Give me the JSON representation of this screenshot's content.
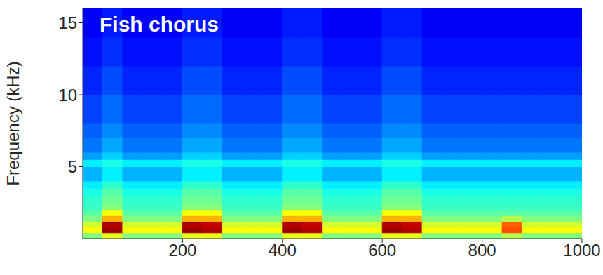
{
  "chart_data": {
    "type": "heatmap",
    "title": "Fish chorus",
    "ylabel": "Frequency (kHz)",
    "xlim": [
      0,
      1000
    ],
    "xticks": [
      200,
      400,
      600,
      800,
      1000
    ],
    "ylim": [
      0,
      16
    ],
    "yticks": [
      5,
      10,
      15
    ],
    "x_edges": [
      0,
      40,
      80,
      120,
      160,
      200,
      240,
      280,
      320,
      360,
      400,
      440,
      480,
      520,
      560,
      600,
      640,
      680,
      720,
      760,
      800,
      840,
      880,
      920,
      960,
      1000
    ],
    "y_edges": [
      0,
      0.4,
      0.8,
      1.2,
      1.6,
      2,
      2.5,
      3,
      3.5,
      4,
      5,
      5.5,
      6,
      7,
      8,
      10,
      12,
      14,
      16
    ],
    "cells": [
      [
        0.5,
        0.6,
        0.5,
        0.5,
        0.5,
        0.6,
        0.6,
        0.5,
        0.5,
        0.5,
        0.6,
        0.6,
        0.5,
        0.5,
        0.5,
        0.6,
        0.6,
        0.5,
        0.5,
        0.5,
        0.5,
        0.55,
        0.5,
        0.5,
        0.5
      ],
      [
        0.62,
        0.97,
        0.62,
        0.62,
        0.62,
        0.97,
        0.95,
        0.62,
        0.62,
        0.62,
        0.97,
        0.95,
        0.62,
        0.62,
        0.62,
        0.97,
        0.95,
        0.62,
        0.62,
        0.62,
        0.62,
        0.8,
        0.62,
        0.62,
        0.62
      ],
      [
        0.58,
        0.95,
        0.58,
        0.58,
        0.58,
        0.95,
        0.93,
        0.58,
        0.58,
        0.58,
        0.95,
        0.93,
        0.58,
        0.58,
        0.58,
        0.95,
        0.93,
        0.58,
        0.58,
        0.58,
        0.58,
        0.78,
        0.58,
        0.58,
        0.58
      ],
      [
        0.5,
        0.7,
        0.5,
        0.5,
        0.5,
        0.7,
        0.7,
        0.5,
        0.5,
        0.5,
        0.7,
        0.7,
        0.5,
        0.5,
        0.5,
        0.7,
        0.7,
        0.5,
        0.5,
        0.5,
        0.5,
        0.55,
        0.5,
        0.5,
        0.5
      ],
      [
        0.46,
        0.62,
        0.46,
        0.46,
        0.46,
        0.62,
        0.62,
        0.46,
        0.46,
        0.46,
        0.62,
        0.62,
        0.46,
        0.46,
        0.46,
        0.62,
        0.62,
        0.46,
        0.46,
        0.46,
        0.46,
        0.46,
        0.46,
        0.46,
        0.46
      ],
      [
        0.43,
        0.5,
        0.43,
        0.43,
        0.43,
        0.5,
        0.5,
        0.43,
        0.43,
        0.43,
        0.5,
        0.5,
        0.43,
        0.43,
        0.43,
        0.5,
        0.5,
        0.43,
        0.43,
        0.43,
        0.43,
        0.43,
        0.43,
        0.43,
        0.43
      ],
      [
        0.42,
        0.48,
        0.42,
        0.42,
        0.42,
        0.48,
        0.48,
        0.42,
        0.42,
        0.42,
        0.48,
        0.48,
        0.42,
        0.42,
        0.42,
        0.48,
        0.48,
        0.42,
        0.42,
        0.42,
        0.42,
        0.42,
        0.42,
        0.42,
        0.42
      ],
      [
        0.4,
        0.46,
        0.4,
        0.4,
        0.4,
        0.46,
        0.46,
        0.4,
        0.4,
        0.4,
        0.46,
        0.46,
        0.4,
        0.4,
        0.4,
        0.46,
        0.46,
        0.4,
        0.4,
        0.4,
        0.4,
        0.4,
        0.4,
        0.4,
        0.4
      ],
      [
        0.36,
        0.42,
        0.36,
        0.36,
        0.36,
        0.42,
        0.42,
        0.36,
        0.36,
        0.36,
        0.42,
        0.42,
        0.36,
        0.36,
        0.36,
        0.42,
        0.42,
        0.36,
        0.36,
        0.36,
        0.36,
        0.36,
        0.36,
        0.36,
        0.36
      ],
      [
        0.3,
        0.36,
        0.3,
        0.3,
        0.3,
        0.36,
        0.36,
        0.3,
        0.3,
        0.3,
        0.36,
        0.36,
        0.3,
        0.3,
        0.3,
        0.36,
        0.36,
        0.3,
        0.3,
        0.3,
        0.3,
        0.3,
        0.3,
        0.3,
        0.3
      ],
      [
        0.36,
        0.4,
        0.36,
        0.36,
        0.36,
        0.4,
        0.4,
        0.36,
        0.36,
        0.36,
        0.4,
        0.4,
        0.36,
        0.36,
        0.36,
        0.4,
        0.4,
        0.36,
        0.36,
        0.36,
        0.36,
        0.36,
        0.36,
        0.36,
        0.36
      ],
      [
        0.28,
        0.33,
        0.28,
        0.28,
        0.28,
        0.33,
        0.33,
        0.28,
        0.28,
        0.28,
        0.33,
        0.33,
        0.28,
        0.28,
        0.28,
        0.33,
        0.33,
        0.28,
        0.28,
        0.28,
        0.28,
        0.28,
        0.28,
        0.28,
        0.28
      ],
      [
        0.24,
        0.29,
        0.24,
        0.24,
        0.24,
        0.29,
        0.29,
        0.24,
        0.24,
        0.24,
        0.29,
        0.29,
        0.24,
        0.24,
        0.24,
        0.29,
        0.29,
        0.24,
        0.24,
        0.24,
        0.24,
        0.24,
        0.24,
        0.24,
        0.24
      ],
      [
        0.22,
        0.26,
        0.22,
        0.22,
        0.22,
        0.26,
        0.26,
        0.22,
        0.22,
        0.22,
        0.26,
        0.26,
        0.22,
        0.22,
        0.22,
        0.26,
        0.26,
        0.22,
        0.22,
        0.22,
        0.22,
        0.22,
        0.22,
        0.22,
        0.22
      ],
      [
        0.19,
        0.23,
        0.19,
        0.19,
        0.19,
        0.23,
        0.23,
        0.19,
        0.19,
        0.19,
        0.23,
        0.23,
        0.19,
        0.19,
        0.19,
        0.23,
        0.23,
        0.19,
        0.19,
        0.19,
        0.19,
        0.19,
        0.19,
        0.19,
        0.19
      ],
      [
        0.16,
        0.2,
        0.16,
        0.16,
        0.16,
        0.2,
        0.2,
        0.16,
        0.16,
        0.16,
        0.2,
        0.2,
        0.16,
        0.16,
        0.16,
        0.2,
        0.2,
        0.16,
        0.16,
        0.16,
        0.16,
        0.16,
        0.16,
        0.16,
        0.16
      ],
      [
        0.14,
        0.17,
        0.14,
        0.14,
        0.14,
        0.17,
        0.17,
        0.14,
        0.14,
        0.14,
        0.17,
        0.17,
        0.14,
        0.14,
        0.14,
        0.17,
        0.17,
        0.14,
        0.14,
        0.14,
        0.14,
        0.14,
        0.14,
        0.14,
        0.14
      ],
      [
        0.12,
        0.15,
        0.12,
        0.12,
        0.12,
        0.15,
        0.15,
        0.12,
        0.12,
        0.12,
        0.15,
        0.15,
        0.12,
        0.12,
        0.12,
        0.15,
        0.15,
        0.12,
        0.12,
        0.12,
        0.12,
        0.12,
        0.12,
        0.12,
        0.12
      ]
    ]
  }
}
